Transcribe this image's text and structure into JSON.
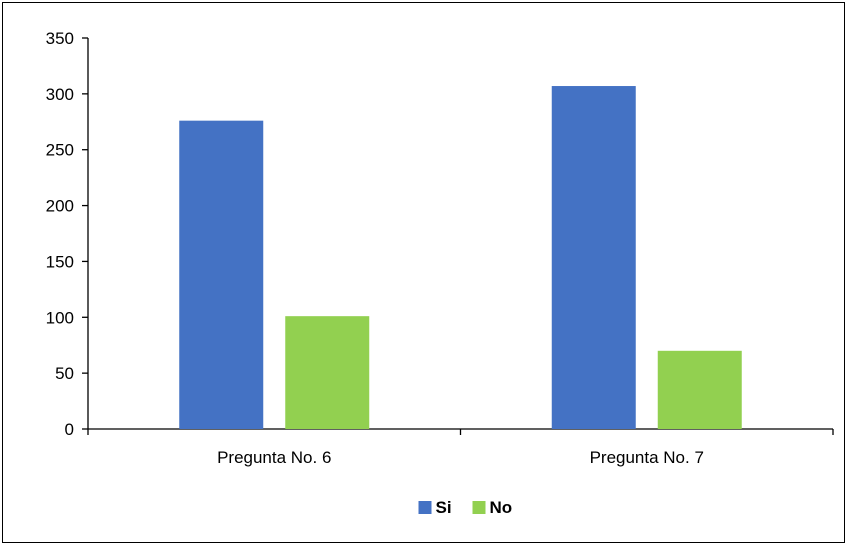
{
  "chart_data": {
    "type": "bar",
    "title": "",
    "xlabel": "",
    "ylabel": "",
    "categories": [
      "Pregunta No. 6",
      "Pregunta No. 7"
    ],
    "series": [
      {
        "name": "Si",
        "values": [
          276,
          307
        ],
        "color": "#4472C4"
      },
      {
        "name": "No",
        "values": [
          101,
          70
        ],
        "color": "#92D050"
      }
    ],
    "ylim": [
      0,
      350
    ],
    "yticks": [
      0,
      50,
      100,
      150,
      200,
      250,
      300,
      350
    ],
    "grid": false,
    "legend_position": "bottom"
  }
}
